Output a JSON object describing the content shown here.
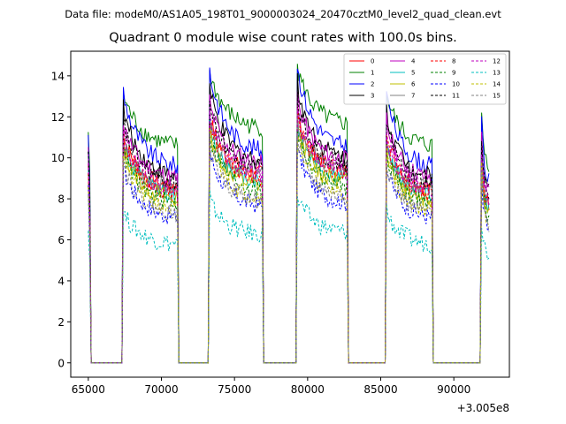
{
  "chart_data": {
    "type": "line",
    "subtitle": "Data file: modeM0/AS1A05_198T01_9000003024_20470cztM0_level2_quad_clean.evt",
    "title": "Quadrant 0 module wise count rates with 100.0s bins.",
    "xlabel": "",
    "ylabel": "",
    "x_offset_label": "+3.005e8",
    "xlim": [
      63800,
      93800
    ],
    "ylim": [
      -0.7,
      15.2
    ],
    "xticks": [
      65000,
      70000,
      75000,
      80000,
      85000,
      90000
    ],
    "xtick_labels": [
      "65000",
      "70000",
      "75000",
      "80000",
      "85000",
      "90000"
    ],
    "yticks": [
      0,
      2,
      4,
      6,
      8,
      10,
      12,
      14
    ],
    "ytick_labels": [
      "0",
      "2",
      "4",
      "6",
      "8",
      "10",
      "12",
      "14"
    ],
    "grid": false,
    "legend_position": "top-right",
    "segments": [
      {
        "x_start": 65000,
        "x_end": 65100,
        "scale": 0.85
      },
      {
        "x_start": 67400,
        "x_end": 71100,
        "scale": 1.0
      },
      {
        "x_start": 73300,
        "x_end": 76900,
        "scale": 1.08
      },
      {
        "x_start": 79300,
        "x_end": 82700,
        "scale": 1.1
      },
      {
        "x_start": 85400,
        "x_end": 88500,
        "scale": 1.0
      },
      {
        "x_start": 91900,
        "x_end": 92400,
        "scale": 0.92
      }
    ],
    "zero_range": [
      65200,
      92400
    ],
    "bin_size": 100,
    "series": [
      {
        "name": "0",
        "color": "#ff0000",
        "dashed": false,
        "start": 11.0,
        "end": 8.5
      },
      {
        "name": "1",
        "color": "#008000",
        "dashed": false,
        "start": 13.0,
        "end": 10.6
      },
      {
        "name": "2",
        "color": "#0000ff",
        "dashed": false,
        "start": 13.0,
        "end": 9.6
      },
      {
        "name": "3",
        "color": "#000000",
        "dashed": false,
        "start": 12.2,
        "end": 9.1
      },
      {
        "name": "4",
        "color": "#bf00bf",
        "dashed": false,
        "start": 11.6,
        "end": 9.0
      },
      {
        "name": "5",
        "color": "#00bfbf",
        "dashed": false,
        "start": 10.5,
        "end": 8.2
      },
      {
        "name": "6",
        "color": "#bfbf00",
        "dashed": false,
        "start": 10.4,
        "end": 8.0
      },
      {
        "name": "7",
        "color": "#808080",
        "dashed": false,
        "start": 10.6,
        "end": 8.5
      },
      {
        "name": "8",
        "color": "#ff0000",
        "dashed": true,
        "start": 10.8,
        "end": 8.3
      },
      {
        "name": "9",
        "color": "#008000",
        "dashed": true,
        "start": 10.2,
        "end": 7.8
      },
      {
        "name": "10",
        "color": "#0000ff",
        "dashed": true,
        "start": 9.4,
        "end": 7.1
      },
      {
        "name": "11",
        "color": "#000000",
        "dashed": true,
        "start": 11.5,
        "end": 8.8
      },
      {
        "name": "12",
        "color": "#bf00bf",
        "dashed": true,
        "start": 11.0,
        "end": 8.5
      },
      {
        "name": "13",
        "color": "#00bfbf",
        "dashed": true,
        "start": 7.3,
        "end": 5.8
      },
      {
        "name": "14",
        "color": "#bfbf00",
        "dashed": true,
        "start": 10.0,
        "end": 7.5
      },
      {
        "name": "15",
        "color": "#808080",
        "dashed": true,
        "start": 9.7,
        "end": 7.3
      }
    ]
  }
}
